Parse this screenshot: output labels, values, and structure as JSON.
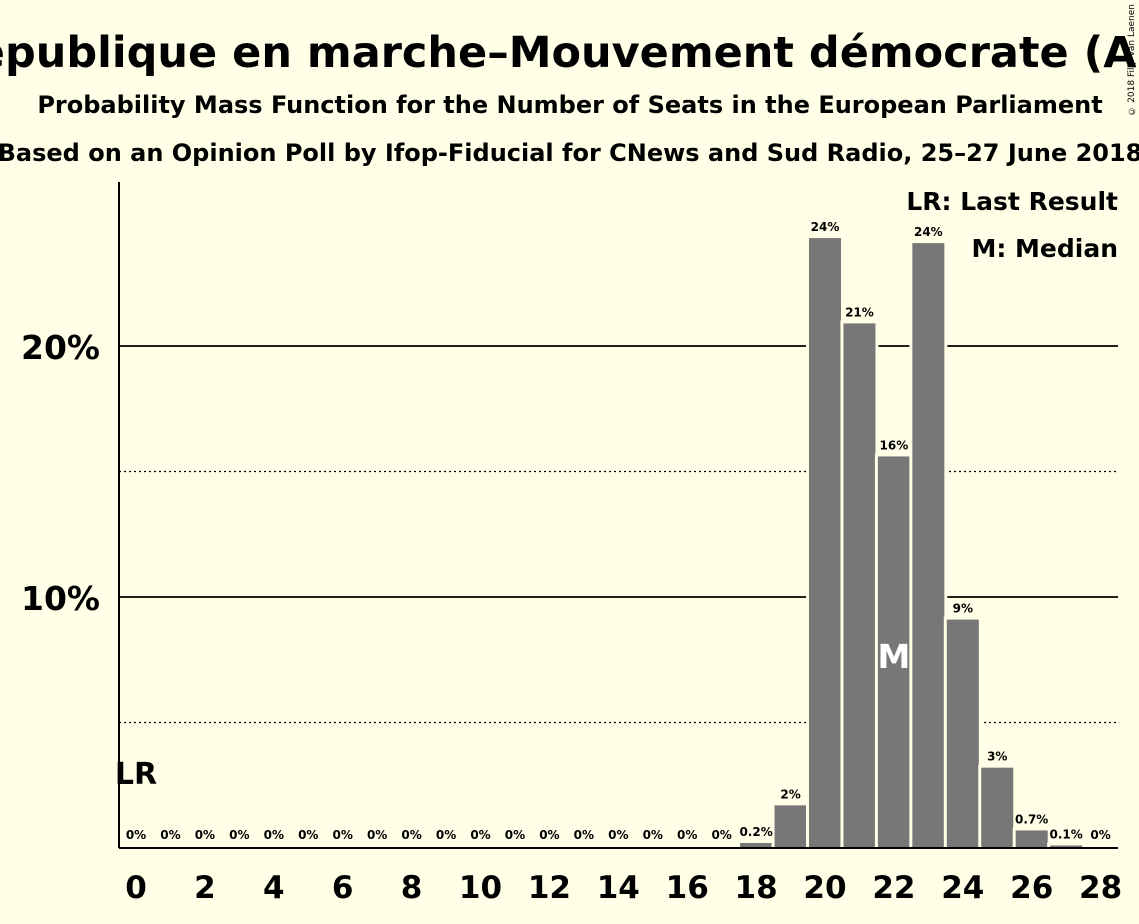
{
  "chart_data": {
    "type": "bar",
    "title": "La République en marche–Mouvement démocrate (ALDE)",
    "subtitle": "Probability Mass Function for the Number of Seats in the European Parliament",
    "subtitle2": "Based on an Opinion Poll by Ifop-Fiducial for CNews and Sud Radio, 25–27 June 2018",
    "x": [
      0,
      1,
      2,
      3,
      4,
      5,
      6,
      7,
      8,
      9,
      10,
      11,
      12,
      13,
      14,
      15,
      16,
      17,
      18,
      19,
      20,
      21,
      22,
      23,
      24,
      25,
      26,
      27,
      28
    ],
    "values": [
      0,
      0,
      0,
      0,
      0,
      0,
      0,
      0,
      0,
      0,
      0,
      0,
      0,
      0,
      0,
      0,
      0,
      0,
      0.2,
      1.7,
      24.3,
      20.9,
      15.6,
      24.1,
      9.1,
      3.2,
      0.7,
      0.1,
      0
    ],
    "data_labels": [
      "0%",
      "0%",
      "0%",
      "0%",
      "0%",
      "0%",
      "0%",
      "0%",
      "0%",
      "0%",
      "0%",
      "0%",
      "0%",
      "0%",
      "0%",
      "0%",
      "0%",
      "0%",
      "0.2%",
      "2%",
      "24%",
      "21%",
      "16%",
      "24%",
      "9%",
      "3%",
      "0.7%",
      "0.1%",
      "0%"
    ],
    "x_ticks": [
      "0",
      "2",
      "4",
      "6",
      "8",
      "10",
      "12",
      "14",
      "16",
      "18",
      "20",
      "22",
      "24",
      "26",
      "28"
    ],
    "y_ticks": [
      "10%",
      "20%"
    ],
    "ylim": [
      0,
      26.5
    ],
    "xlabel": "",
    "ylabel": "",
    "last_result": 0,
    "median": 22,
    "legend": [
      "LR: Last Result",
      "M: Median"
    ],
    "lr_label": "LR",
    "median_label": "M",
    "colors": {
      "bar": "#777777",
      "background": "#FFFEE6"
    }
  },
  "copyright": "© 2018 Filip van Laenen"
}
